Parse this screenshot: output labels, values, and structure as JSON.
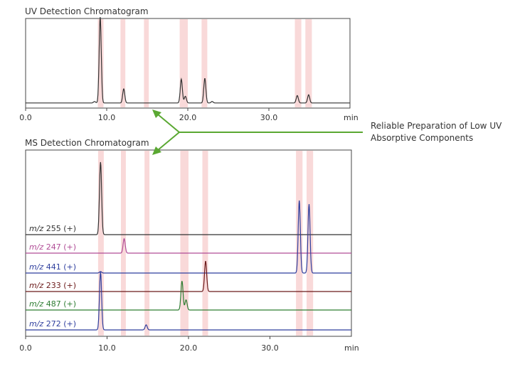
{
  "chart_data": [
    {
      "type": "line",
      "title": "UV Detection Chromatogram",
      "xlabel": "min",
      "ylabel": "",
      "xlim": [
        0,
        40
      ],
      "x_ticks": [
        "0.0",
        "10.0",
        "20.0",
        "30.0"
      ],
      "highlight_bands": [
        [
          8.9,
          9.6
        ],
        [
          11.7,
          12.3
        ],
        [
          14.6,
          15.2
        ],
        [
          19.0,
          20.0
        ],
        [
          21.7,
          22.4
        ],
        [
          33.2,
          34.0
        ],
        [
          34.5,
          35.3
        ]
      ],
      "series": [
        {
          "color": "#333333",
          "baseline": 0.03,
          "peaks": [
            {
              "x": 8.5,
              "h": 0.02
            },
            {
              "x": 9.2,
              "h": 1.15
            },
            {
              "x": 12.1,
              "h": 0.19
            },
            {
              "x": 19.2,
              "h": 0.32
            },
            {
              "x": 19.7,
              "h": 0.09
            },
            {
              "x": 22.1,
              "h": 0.33
            },
            {
              "x": 23.0,
              "h": 0.02
            },
            {
              "x": 33.5,
              "h": 0.1
            },
            {
              "x": 34.9,
              "h": 0.11
            }
          ]
        }
      ]
    },
    {
      "type": "line",
      "title": "MS Detection Chromatogram",
      "xlabel": "min",
      "ylabel": "",
      "xlim": [
        0,
        40
      ],
      "x_ticks": [
        "0.0",
        "10.0",
        "20.0",
        "30.0"
      ],
      "highlight_bands": [
        [
          8.9,
          9.6
        ],
        [
          11.7,
          12.3
        ],
        [
          14.6,
          15.2
        ],
        [
          19.0,
          20.0
        ],
        [
          21.7,
          22.4
        ],
        [
          33.2,
          34.0
        ],
        [
          34.5,
          35.3
        ]
      ],
      "series": [
        {
          "name": "255 (+)",
          "color": "#333333",
          "peaks": [
            {
              "x": 9.2,
              "h": 1.0
            }
          ]
        },
        {
          "name": "247 (+)",
          "color": "#b04c96",
          "peaks": [
            {
              "x": 12.1,
              "h": 0.2
            }
          ]
        },
        {
          "name": "441 (+)",
          "color": "#2f3f9e",
          "peaks": [
            {
              "x": 9.2,
              "h": 0.02
            },
            {
              "x": 33.6,
              "h": 1.0
            },
            {
              "x": 34.8,
              "h": 0.95
            }
          ]
        },
        {
          "name": "233 (+)",
          "color": "#6b1a1a",
          "peaks": [
            {
              "x": 22.1,
              "h": 0.42
            }
          ]
        },
        {
          "name": "487 (+)",
          "color": "#2e7d32",
          "peaks": [
            {
              "x": 19.2,
              "h": 0.4
            },
            {
              "x": 19.7,
              "h": 0.14
            }
          ]
        },
        {
          "name": "272 (+)",
          "color": "#2f3f9e",
          "peaks": [
            {
              "x": 9.2,
              "h": 0.8
            },
            {
              "x": 14.8,
              "h": 0.07
            }
          ]
        }
      ]
    }
  ],
  "trace_prefix": "m/z",
  "annotation": {
    "line1": "Reliable Preparation of Low UV",
    "line2": "Absorptive Components",
    "color": "#5aa832"
  },
  "band_color": "#f9d9d9"
}
